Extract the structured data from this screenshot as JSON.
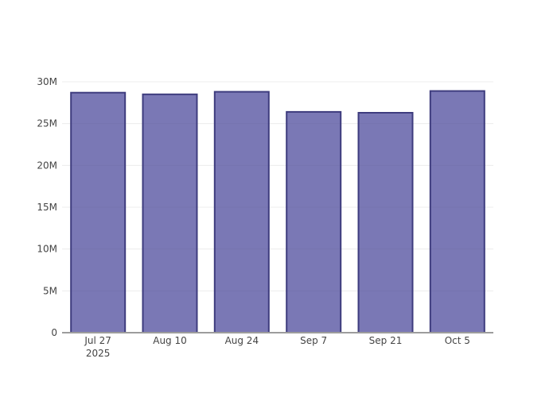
{
  "chart_data": {
    "type": "bar",
    "title": "",
    "xlabel": "",
    "ylabel": "",
    "categories": [
      "Jul 27 2025",
      "Aug 10",
      "Aug 24",
      "Sep 7",
      "Sep 21",
      "Oct 5"
    ],
    "x_tick_lines": [
      [
        "Jul 27",
        "2025"
      ],
      [
        "Aug 10"
      ],
      [
        "Aug 24"
      ],
      [
        "Sep 7"
      ],
      [
        "Sep 21"
      ],
      [
        "Oct 5"
      ]
    ],
    "values": [
      28.7,
      28.5,
      28.8,
      26.4,
      26.3,
      28.9
    ],
    "value_unit": "M",
    "ylim": [
      0,
      30
    ],
    "yticks": {
      "values": [
        0,
        5,
        10,
        15,
        20,
        25,
        30
      ],
      "labels": [
        "0",
        "5M",
        "10M",
        "15M",
        "20M",
        "25M",
        "30M"
      ]
    },
    "grid": true,
    "legend_visible": false,
    "colors": {
      "bar_fill": "rgba(70,68,153,0.72)",
      "bar_border": "#3E3C7E",
      "gridline": "#ECECEC",
      "axis_line": "#9C9C9C",
      "tick_text": "#444444",
      "background": "#FFFFFF"
    }
  }
}
